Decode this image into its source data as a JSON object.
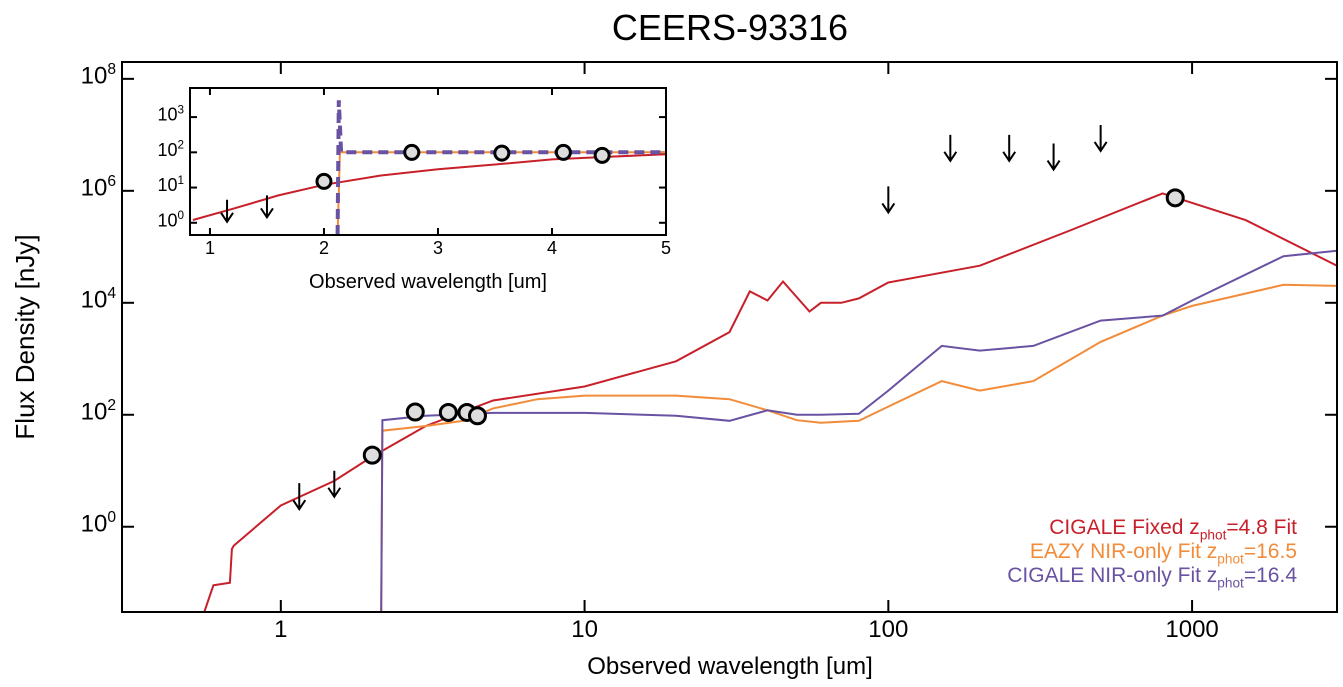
{
  "chart_data": [
    {
      "type": "line",
      "title": "CEERS-93316",
      "x_label": "Observed wavelength [um]",
      "y_label": "Flux Density [nJy]",
      "xscale": "log",
      "yscale": "log",
      "xlim": [
        0.3,
        3000
      ],
      "ylim": [
        0.03,
        200000000
      ],
      "xticks": [
        1,
        10,
        100,
        1000
      ],
      "yticks": [
        {
          "value": 1,
          "label": "10^0"
        },
        {
          "value": 100,
          "label": "10^2"
        },
        {
          "value": 10000,
          "label": "10^4"
        },
        {
          "value": 1000000,
          "label": "10^6"
        },
        {
          "value": 100000000,
          "label": "10^8"
        }
      ],
      "legend": "lower right",
      "series": [
        {
          "name": "CIGALE Fixed z_phot=4.8 Fit",
          "color": "#c8202a",
          "x": [
            0.56,
            0.6,
            0.68,
            0.69,
            0.7,
            1,
            1.5,
            2,
            3,
            5,
            10,
            20,
            30,
            35,
            40,
            45,
            55,
            60,
            70,
            80,
            100,
            200,
            400,
            800,
            1500,
            3000
          ],
          "values": [
            0.03,
            0.09,
            0.1,
            0.4,
            0.46,
            2.4,
            6.6,
            18,
            63,
            180,
            320,
            900,
            3000,
            16000,
            11000,
            24000,
            7000,
            10000,
            10000,
            12000,
            23000,
            46000,
            200000,
            900000,
            300000,
            46000
          ]
        },
        {
          "name": "EAZY NIR-only Fit z_phot=16.5",
          "color": "#f28c3a",
          "x": [
            2.14,
            2.16,
            3,
            4,
            5,
            7,
            10,
            20,
            30,
            40,
            50,
            60,
            80,
            100,
            150,
            200,
            300,
            500,
            800,
            1000,
            2000,
            3000
          ],
          "values": [
            0.03,
            52,
            63,
            78,
            130,
            190,
            220,
            220,
            190,
            120,
            80,
            72,
            78,
            140,
            400,
            270,
            400,
            2000,
            5900,
            8800,
            21000,
            20000
          ]
        },
        {
          "name": "CIGALE NIR-only Fit z_phot=16.4",
          "color": "#6a52a3",
          "x": [
            2.14,
            2.16,
            3,
            5,
            10,
            20,
            30,
            40,
            50,
            60,
            80,
            100,
            150,
            200,
            300,
            500,
            800,
            1000,
            2000,
            3000
          ],
          "values": [
            0.03,
            80,
            96,
            108,
            108,
            96,
            78,
            120,
            100,
            100,
            104,
            270,
            1700,
            1400,
            1700,
            4800,
            5900,
            11000,
            68000,
            85000
          ]
        }
      ],
      "points": {
        "x": [
          2.0,
          2.77,
          3.56,
          4.1,
          4.44,
          880
        ],
        "values": [
          19,
          112,
          110,
          110,
          96,
          750000
        ]
      },
      "upper_limits": {
        "x": [
          1.15,
          1.5,
          100,
          160,
          250,
          350,
          500
        ],
        "values": [
          6,
          10,
          1200000,
          10000000,
          10000000,
          7000000,
          15000000
        ]
      }
    },
    {
      "type": "line",
      "x_label": "Observed wavelength [um]",
      "xscale": "linear",
      "yscale": "log",
      "xlim": [
        0.825,
        5
      ],
      "ylim": [
        0.45,
        6700
      ],
      "xticks": [
        1,
        2,
        3,
        4,
        5
      ],
      "yticks": [
        {
          "value": 1,
          "label": "10^0"
        },
        {
          "value": 10,
          "label": "10^1"
        },
        {
          "value": 100,
          "label": "10^2"
        },
        {
          "value": 1000,
          "label": "10^3"
        }
      ],
      "series": [
        {
          "color": "#c8202a",
          "x": [
            0.85,
            1.2,
            1.6,
            2,
            2.5,
            3,
            3.5,
            4,
            4.5,
            5
          ],
          "values": [
            1.2,
            2.5,
            6,
            12,
            22,
            33,
            45,
            63,
            75,
            88
          ]
        },
        {
          "color": "#f28c3a",
          "x": [
            2.12,
            2.14,
            2.5,
            3,
            4,
            5
          ],
          "values": [
            0.45,
            100,
            100,
            100,
            100,
            100
          ]
        },
        {
          "color": "#6a52a3",
          "dashed": true,
          "x": [
            2.12,
            2.13,
            2.15,
            2.5,
            3,
            4,
            5
          ],
          "values": [
            0.45,
            3000,
            100,
            100,
            100,
            100,
            100
          ]
        }
      ],
      "points": {
        "x": [
          2.0,
          2.77,
          3.56,
          4.1,
          4.44
        ],
        "values": [
          15,
          100,
          95,
          100,
          82
        ]
      },
      "upper_limits": {
        "x": [
          1.15,
          1.5
        ],
        "values": [
          4.5,
          6
        ]
      }
    }
  ]
}
